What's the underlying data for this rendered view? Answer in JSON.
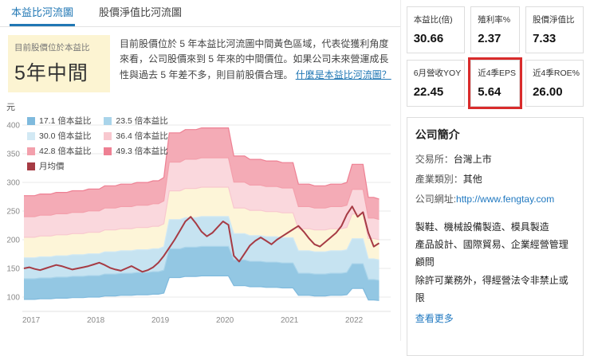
{
  "tabs": [
    {
      "label": "本益比河流圖",
      "active": true
    },
    {
      "label": "股價淨值比河流圖",
      "active": false
    }
  ],
  "assessment": {
    "badge_small": "目前股價位於本益比",
    "badge_big": "5年中間",
    "description": "目前股價位於 5 年本益比河流圖中間黃色區域，代表從獲利角度來看，公司股價來到 5 年來的中間價位。如果公司未來營運成長性與過去 5 年差不多，則目前股價合理。",
    "link_label": "什麼是本益比河流圖？"
  },
  "chart_data": {
    "type": "area",
    "title": "本益比河流圖",
    "unit_label": "元",
    "x_start": 2017,
    "x_step": "month",
    "x_ticks": [
      2017,
      2018,
      2019,
      2020,
      2021,
      2022
    ],
    "y_ticks": [
      100,
      150,
      200,
      250,
      300,
      350,
      400
    ],
    "ylim": [
      75,
      430
    ],
    "grid": true,
    "legend_position": "top-left",
    "multiples": [
      17.1,
      23.5,
      30.0,
      36.4,
      42.8,
      49.3
    ],
    "legend": [
      {
        "label": "17.1 倍本益比",
        "color": "#7fbadd"
      },
      {
        "label": "23.5 倍本益比",
        "color": "#a9d4ea"
      },
      {
        "label": "30.0 倍本益比",
        "color": "#d2e9f4"
      },
      {
        "label": "36.4 倍本益比",
        "color": "#f8c8cf"
      },
      {
        "label": "42.8 倍本益比",
        "color": "#f3a0ac"
      },
      {
        "label": "49.3 倍本益比",
        "color": "#ee8093"
      },
      {
        "label": "月均價",
        "color": "#a63b44"
      }
    ],
    "band_colors": [
      "#93c7e3",
      "#c6e3f1",
      "#fdf5d8",
      "#fad8dd",
      "#f4abb6"
    ],
    "pe_base_17_1x": [
      96,
      96,
      96,
      97,
      97,
      97,
      98,
      98,
      98,
      99,
      99,
      99,
      100,
      100,
      100,
      102,
      102,
      102,
      103,
      103,
      103,
      104,
      104,
      104,
      105,
      105,
      107,
      134,
      134,
      134,
      136,
      136,
      136,
      137,
      137,
      137,
      137,
      137,
      137,
      120,
      120,
      120,
      118,
      118,
      118,
      117,
      117,
      117,
      116,
      116,
      116,
      103,
      103,
      103,
      102,
      102,
      102,
      103,
      103,
      103,
      104,
      115,
      115,
      115,
      95,
      95,
      94
    ],
    "monthly_avg_price": [
      150,
      152,
      149,
      147,
      150,
      153,
      156,
      154,
      151,
      148,
      150,
      152,
      154,
      157,
      160,
      156,
      151,
      148,
      146,
      150,
      154,
      149,
      144,
      147,
      152,
      160,
      172,
      186,
      200,
      216,
      232,
      240,
      228,
      214,
      206,
      212,
      222,
      232,
      226,
      172,
      162,
      176,
      190,
      198,
      204,
      198,
      192,
      200,
      206,
      212,
      218,
      224,
      214,
      202,
      192,
      188,
      196,
      204,
      212,
      224,
      244,
      258,
      240,
      248,
      212,
      188,
      194
    ]
  },
  "metrics": [
    {
      "label": "本益比(倍)",
      "value": "30.66",
      "highlight": false
    },
    {
      "label": "殖利率%",
      "value": "2.37",
      "highlight": false
    },
    {
      "label": "股價淨值比",
      "value": "7.33",
      "highlight": false
    },
    {
      "label": "6月營收YOY",
      "value": "22.45",
      "highlight": false
    },
    {
      "label": "近4季EPS",
      "value": "5.64",
      "highlight": true
    },
    {
      "label": "近4季ROE%",
      "value": "26.00",
      "highlight": false
    }
  ],
  "company": {
    "title": "公司簡介",
    "fields": [
      {
        "label": "交易所：",
        "value": "台灣上市",
        "link": false
      },
      {
        "label": "產業類別：",
        "value": "其他",
        "link": false
      },
      {
        "label": "公司網址:",
        "value": "http://www.fengtay.com",
        "link": true
      }
    ],
    "business_lines": [
      "製鞋、機械設備製造、模具製造",
      "產品設計、國際貿易、企業經營管理顧問",
      "除許可業務外，得經營法令非禁止或限"
    ],
    "more_label": "查看更多"
  },
  "colors": {
    "accent_blue": "#2077b4",
    "link_blue": "#1f78c0",
    "highlight_red": "#d92b2b",
    "badge_yellow": "#fcf4d2",
    "price_line": "#a63b44"
  }
}
